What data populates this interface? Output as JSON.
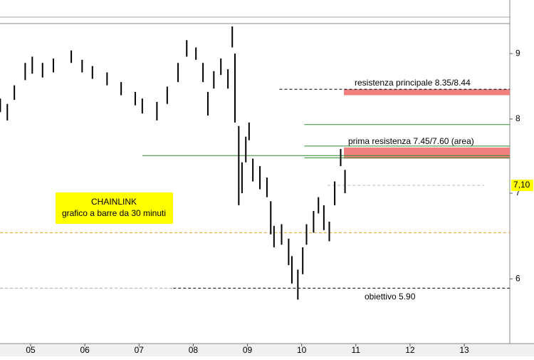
{
  "chart_data": {
    "type": "ohlc",
    "log_scale": true,
    "xlim": [
      4.435,
      13.84
    ],
    "ylim": [
      5.34,
      9.5
    ],
    "xticks": [
      {
        "value": 5,
        "label": "05"
      },
      {
        "value": 6,
        "label": "06"
      },
      {
        "value": 7,
        "label": "07"
      },
      {
        "value": 8,
        "label": "08"
      },
      {
        "value": 9,
        "label": "09"
      },
      {
        "value": 10,
        "label": "10"
      },
      {
        "value": 11,
        "label": "11"
      },
      {
        "value": 12,
        "label": "12"
      },
      {
        "value": 13,
        "label": "13"
      }
    ],
    "yticks": [
      6,
      7,
      8,
      9
    ],
    "color": "#000000",
    "x": [
      4.44,
      4.57,
      4.7,
      4.9,
      5.03,
      5.22,
      5.42,
      5.75,
      5.95,
      6.14,
      6.41,
      6.67,
      6.93,
      7.06,
      7.33,
      7.52,
      7.72,
      7.88,
      8.05,
      8.18,
      8.27,
      8.38,
      8.51,
      8.64,
      8.72,
      8.77,
      8.84,
      8.9,
      8.97,
      9.03,
      9.1,
      9.23,
      9.36,
      9.43,
      9.49,
      9.63,
      9.76,
      9.82,
      9.93,
      10.02,
      10.09,
      10.22,
      10.31,
      10.41,
      10.51,
      10.61,
      10.72,
      10.8
    ],
    "highs": [
      8.3,
      8.22,
      8.5,
      8.85,
      8.95,
      8.85,
      8.92,
      9.05,
      8.9,
      8.8,
      8.7,
      8.55,
      8.4,
      8.3,
      8.25,
      8.48,
      8.85,
      9.22,
      9.1,
      8.85,
      8.4,
      8.72,
      8.92,
      8.75,
      9.45,
      9.0,
      7.9,
      7.4,
      7.75,
      7.95,
      7.45,
      7.35,
      7.2,
      6.9,
      6.6,
      6.62,
      6.45,
      6.25,
      6.1,
      6.35,
      6.62,
      6.78,
      6.95,
      6.85,
      6.65,
      7.15,
      7.58,
      7.3
    ],
    "lows": [
      8.1,
      7.98,
      8.28,
      8.58,
      8.68,
      8.62,
      8.7,
      8.85,
      8.7,
      8.6,
      8.5,
      8.35,
      8.2,
      8.08,
      7.98,
      8.22,
      8.55,
      8.95,
      8.9,
      8.55,
      8.05,
      8.45,
      8.66,
      8.45,
      9.1,
      7.95,
      6.85,
      7.0,
      7.4,
      7.7,
      7.15,
      7.05,
      6.95,
      6.5,
      6.35,
      6.38,
      6.15,
      5.95,
      5.78,
      6.05,
      6.38,
      6.52,
      6.75,
      6.55,
      6.42,
      6.85,
      7.35,
      7.0
    ],
    "levels": [
      {
        "value": 8.44,
        "start": 9.59,
        "color": "#000000",
        "dashed": true
      },
      {
        "value": 7.92,
        "start": 10.05,
        "color": "#2e8b2e",
        "dashed": false
      },
      {
        "value": 7.62,
        "start": 10.05,
        "color": "#2e8b2e",
        "dashed": false
      },
      {
        "value": 7.49,
        "start": 7.06,
        "color": "#2e8b2e",
        "dashed": false
      },
      {
        "value": 7.46,
        "start": 10.05,
        "color": "#2e8b2e",
        "dashed": false
      },
      {
        "value": 7.1,
        "start": 10.48,
        "end": 13.37,
        "color": "#bbbbbb",
        "dashed": true
      },
      {
        "value": 6.52,
        "start": 4.435,
        "color": "#f0a020",
        "dashed": true
      },
      {
        "value": 5.9,
        "start": 4.435,
        "end": 7.63,
        "color": "#aaaaaa",
        "dashed": true
      },
      {
        "value": 5.9,
        "start": 7.63,
        "color": "#000000",
        "dashed": true
      }
    ],
    "bands": [
      {
        "from": 8.35,
        "to": 8.44,
        "start": 10.78,
        "color": "#f08080"
      },
      {
        "from": 7.45,
        "to": 7.6,
        "start": 10.78,
        "color": "#f08080"
      }
    ],
    "last_price": {
      "value": 7.1,
      "label": "7,10"
    },
    "annotations": [
      "resistenza principale 8.35/8.44",
      "prima resistenza 7.45/7.60 (area)",
      "obiettivo 5.90"
    ],
    "title_box": [
      "CHAINLINK",
      "grafico a barre da 30 minuti"
    ]
  }
}
